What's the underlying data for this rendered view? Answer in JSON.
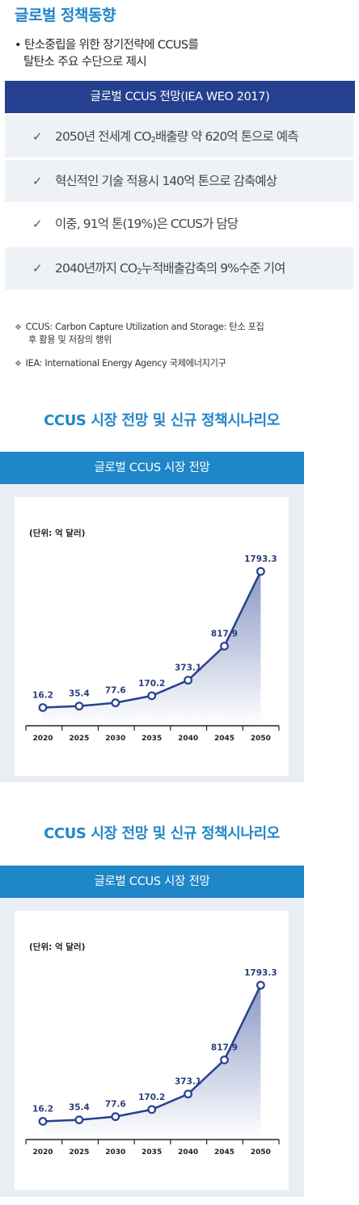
{
  "header": {
    "title": "글로벌 정책동향",
    "bullet_marker": "•",
    "bullet_line1": "탄소중립을 위한  장기전략에 CCUS를",
    "bullet_line2": "탈탄소 주요 수단으로 제시"
  },
  "outlook_banner": "글로벌 CCUS 전망(IEA WEO 2017)",
  "check_mark": "✓",
  "points": [
    {
      "pre": "2050년 전세계 CO",
      "sub": "2",
      "post": "배출량 약 620억 톤으로 예측"
    },
    {
      "pre": "혁신적인 기술 적용시 140억 톤으로 감축예상",
      "sub": "",
      "post": ""
    },
    {
      "pre": "이중, 91억 톤(19%)은 CCUS가 담당",
      "sub": "",
      "post": ""
    },
    {
      "pre": "2040년까지 CO",
      "sub": "2",
      "post": "누적배출감축의 9%수준 기여"
    }
  ],
  "notes": {
    "marker": "❖",
    "ccus_line1": "CCUS: Carbon Capture Utilization and Storage: 탄소 포집",
    "ccus_line2": "후 활용 및 저장의 행위",
    "iea": "IEA: International Energy Agency 국제에너지기구"
  },
  "section_title": "CCUS 시장 전망 및 신규 정책시나리오",
  "chart_header": "글로벌 CCUS 시장 전망",
  "chart_data": [
    {
      "type": "area",
      "title": "글로벌 CCUS 시장 전망",
      "unit_label": "(단위: 억 달러)",
      "categories": [
        "2020",
        "2025",
        "2030",
        "2035",
        "2040",
        "2045",
        "2050"
      ],
      "values": [
        16.2,
        35.4,
        77.6,
        170.2,
        373.1,
        817.9,
        1793.3
      ],
      "value_labels": [
        "16.2",
        "35.4",
        "77.6",
        "170.2",
        "373.1",
        "817.9",
        "1793.3"
      ],
      "line_color": "#27408f",
      "ylim": [
        0,
        1793.3
      ],
      "grid": false,
      "legend": "none"
    },
    {
      "type": "area",
      "title": "글로벌 CCUS 시장 전망",
      "unit_label": "(단위: 억 달러)",
      "categories": [
        "2020",
        "2025",
        "2030",
        "2035",
        "2040",
        "2045",
        "2050"
      ],
      "values": [
        16.2,
        35.4,
        77.6,
        170.2,
        373.1,
        817.9,
        1793.3
      ],
      "value_labels": [
        "16.2",
        "35.4",
        "77.6",
        "170.2",
        "373.1",
        "817.9",
        "1793.3"
      ],
      "line_color": "#27408f",
      "ylim": [
        0,
        1793.3
      ],
      "grid": false,
      "legend": "none"
    }
  ]
}
